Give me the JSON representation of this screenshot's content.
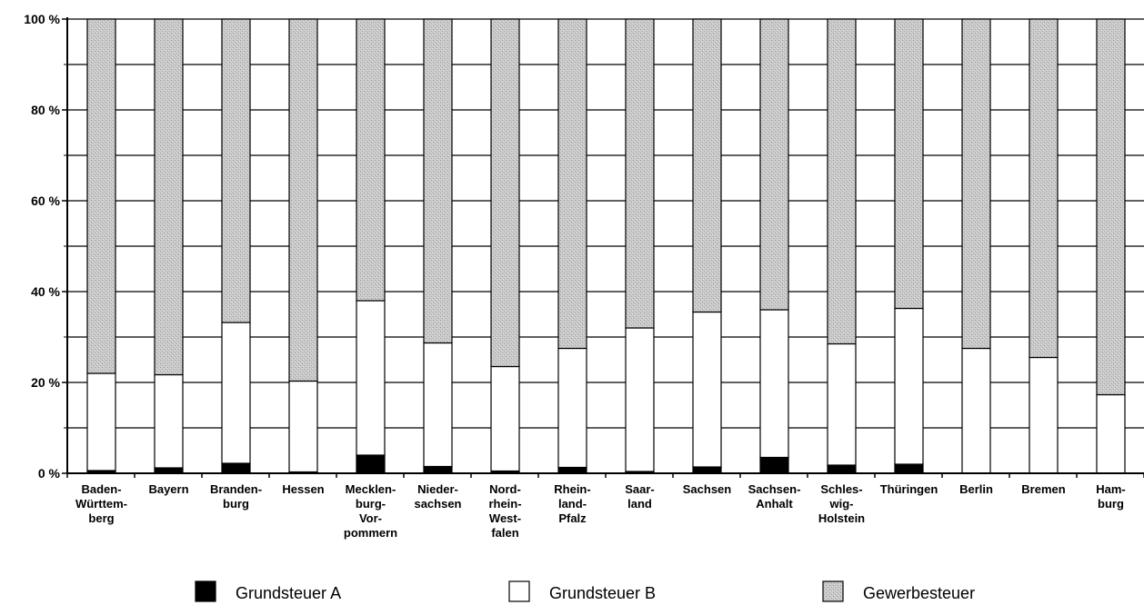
{
  "chart_data": {
    "type": "bar",
    "stacked": true,
    "percent": true,
    "categories": [
      [
        "Baden-",
        "Württem-",
        "berg"
      ],
      [
        "Bayern"
      ],
      [
        "Branden-",
        "burg"
      ],
      [
        "Hessen"
      ],
      [
        "Mecklen-",
        "burg-",
        "Vor-",
        "pommern"
      ],
      [
        "Nieder-",
        "sachsen"
      ],
      [
        "Nord-",
        "rhein-",
        "West-",
        "falen"
      ],
      [
        "Rhein-",
        "land-",
        "Pfalz"
      ],
      [
        "Saar-",
        "land"
      ],
      [
        "Sachsen"
      ],
      [
        "Sachsen-",
        "Anhalt"
      ],
      [
        "Schles-",
        "wig-",
        "Holstein"
      ],
      [
        "Thüringen"
      ],
      [
        "Berlin"
      ],
      [
        "Bremen"
      ],
      [
        "Ham-",
        "burg"
      ]
    ],
    "series": [
      {
        "name": "Grundsteuer A",
        "color": "#000000",
        "values": [
          0.6,
          1.2,
          2.2,
          0.3,
          4.0,
          1.5,
          0.5,
          1.3,
          0.4,
          1.4,
          3.5,
          1.8,
          2.0,
          0.0,
          0.0,
          0.0
        ]
      },
      {
        "name": "Grundsteuer B",
        "color": "#ffffff",
        "values": [
          21.4,
          20.5,
          31.0,
          20.0,
          34.0,
          27.2,
          23.0,
          26.2,
          31.6,
          34.1,
          32.5,
          26.7,
          34.3,
          27.5,
          25.5,
          17.3
        ]
      },
      {
        "name": "Gewerbesteuer",
        "color": "#c8c8c8",
        "values": [
          78.0,
          78.3,
          66.8,
          79.7,
          62.0,
          71.3,
          76.5,
          72.5,
          68.0,
          64.5,
          64.0,
          71.5,
          63.7,
          72.5,
          74.5,
          82.7
        ]
      }
    ],
    "y_ticks": [
      "0 %",
      "20 %",
      "40 %",
      "60 %",
      "80 %",
      "100 %"
    ],
    "ylim": [
      0,
      100
    ],
    "grid": true,
    "legend_position": "bottom"
  }
}
